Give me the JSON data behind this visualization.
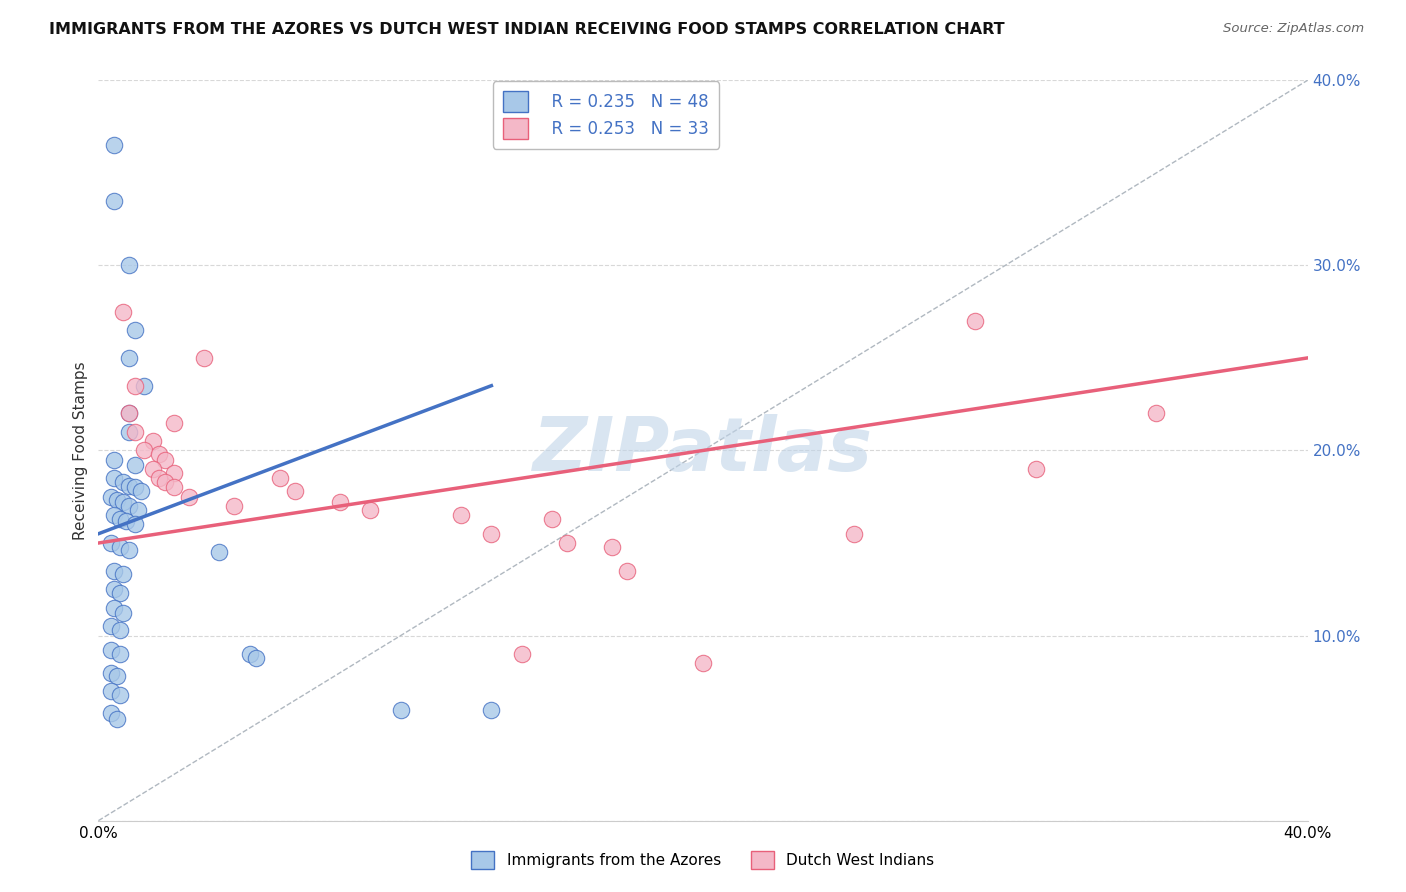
{
  "title": "IMMIGRANTS FROM THE AZORES VS DUTCH WEST INDIAN RECEIVING FOOD STAMPS CORRELATION CHART",
  "source": "Source: ZipAtlas.com",
  "ylabel": "Receiving Food Stamps",
  "xlim": [
    0.0,
    0.4
  ],
  "ylim": [
    0.0,
    0.4
  ],
  "legend_blue_R": "R = 0.235",
  "legend_blue_N": "N = 48",
  "legend_pink_R": "R = 0.253",
  "legend_pink_N": "N = 33",
  "legend1_label": "Immigrants from the Azores",
  "legend2_label": "Dutch West Indians",
  "blue_color": "#a8c8e8",
  "pink_color": "#f4b8c8",
  "blue_line_color": "#4472c4",
  "pink_line_color": "#e8607a",
  "diagonal_color": "#b0b8c0",
  "watermark": "ZIPatlas",
  "watermark_color": "#c0d4e8",
  "background_color": "#ffffff",
  "grid_color": "#d8d8d8",
  "blue_scatter": [
    [
      0.005,
      0.365
    ],
    [
      0.005,
      0.335
    ],
    [
      0.01,
      0.3
    ],
    [
      0.012,
      0.265
    ],
    [
      0.01,
      0.25
    ],
    [
      0.015,
      0.235
    ],
    [
      0.01,
      0.22
    ],
    [
      0.01,
      0.21
    ],
    [
      0.005,
      0.195
    ],
    [
      0.012,
      0.192
    ],
    [
      0.005,
      0.185
    ],
    [
      0.008,
      0.183
    ],
    [
      0.01,
      0.181
    ],
    [
      0.012,
      0.18
    ],
    [
      0.014,
      0.178
    ],
    [
      0.004,
      0.175
    ],
    [
      0.006,
      0.173
    ],
    [
      0.008,
      0.172
    ],
    [
      0.01,
      0.17
    ],
    [
      0.013,
      0.168
    ],
    [
      0.005,
      0.165
    ],
    [
      0.007,
      0.163
    ],
    [
      0.009,
      0.162
    ],
    [
      0.012,
      0.16
    ],
    [
      0.004,
      0.15
    ],
    [
      0.007,
      0.148
    ],
    [
      0.01,
      0.146
    ],
    [
      0.04,
      0.145
    ],
    [
      0.005,
      0.135
    ],
    [
      0.008,
      0.133
    ],
    [
      0.005,
      0.125
    ],
    [
      0.007,
      0.123
    ],
    [
      0.005,
      0.115
    ],
    [
      0.008,
      0.112
    ],
    [
      0.004,
      0.105
    ],
    [
      0.007,
      0.103
    ],
    [
      0.004,
      0.092
    ],
    [
      0.007,
      0.09
    ],
    [
      0.05,
      0.09
    ],
    [
      0.052,
      0.088
    ],
    [
      0.004,
      0.08
    ],
    [
      0.006,
      0.078
    ],
    [
      0.004,
      0.07
    ],
    [
      0.007,
      0.068
    ],
    [
      0.004,
      0.058
    ],
    [
      0.006,
      0.055
    ],
    [
      0.1,
      0.06
    ],
    [
      0.13,
      0.06
    ]
  ],
  "pink_scatter": [
    [
      0.008,
      0.275
    ],
    [
      0.035,
      0.25
    ],
    [
      0.012,
      0.235
    ],
    [
      0.01,
      0.22
    ],
    [
      0.025,
      0.215
    ],
    [
      0.012,
      0.21
    ],
    [
      0.018,
      0.205
    ],
    [
      0.015,
      0.2
    ],
    [
      0.02,
      0.198
    ],
    [
      0.022,
      0.195
    ],
    [
      0.018,
      0.19
    ],
    [
      0.025,
      0.188
    ],
    [
      0.02,
      0.185
    ],
    [
      0.06,
      0.185
    ],
    [
      0.022,
      0.183
    ],
    [
      0.025,
      0.18
    ],
    [
      0.065,
      0.178
    ],
    [
      0.03,
      0.175
    ],
    [
      0.08,
      0.172
    ],
    [
      0.045,
      0.17
    ],
    [
      0.09,
      0.168
    ],
    [
      0.12,
      0.165
    ],
    [
      0.15,
      0.163
    ],
    [
      0.13,
      0.155
    ],
    [
      0.155,
      0.15
    ],
    [
      0.17,
      0.148
    ],
    [
      0.175,
      0.135
    ],
    [
      0.14,
      0.09
    ],
    [
      0.2,
      0.085
    ],
    [
      0.25,
      0.155
    ],
    [
      0.29,
      0.27
    ],
    [
      0.31,
      0.19
    ],
    [
      0.35,
      0.22
    ]
  ],
  "blue_line_fixed": [
    [
      0.0,
      0.155
    ],
    [
      0.13,
      0.235
    ]
  ],
  "pink_line_fixed": [
    [
      0.0,
      0.15
    ],
    [
      0.4,
      0.25
    ]
  ]
}
